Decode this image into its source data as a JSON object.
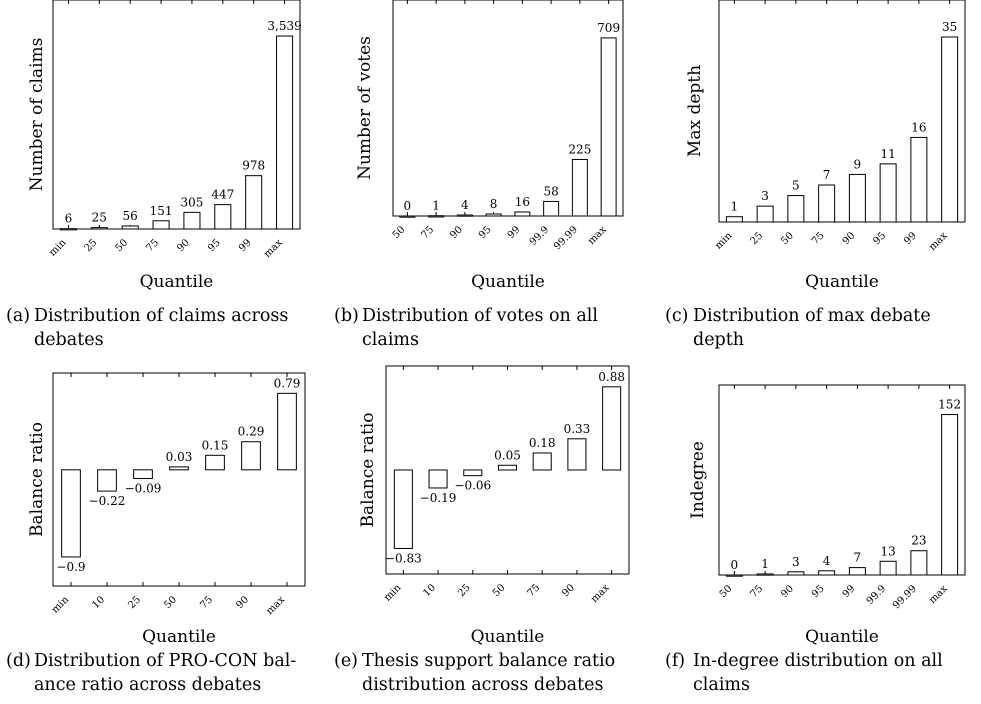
{
  "chart_data": [
    {
      "type": "bar",
      "categories": [
        "min",
        "25",
        "50",
        "75",
        "90",
        "95",
        "99",
        "max"
      ],
      "values": [
        6,
        25,
        56,
        151,
        305,
        447,
        978,
        3539
      ],
      "value_labels": [
        "6",
        "25",
        "56",
        "151",
        "305",
        "447",
        "978",
        "3,539"
      ],
      "xlabel": "Quantile",
      "ylabel": "Number of claims",
      "ylim": [
        0,
        4200
      ],
      "grid": false,
      "caption_tag": "(a)",
      "caption_lines": [
        "Distribution of claims across",
        "debates"
      ]
    },
    {
      "type": "bar",
      "categories": [
        "50",
        "75",
        "90",
        "95",
        "99",
        "99.9",
        "99.99",
        "max"
      ],
      "values": [
        0,
        1,
        4,
        8,
        16,
        58,
        225,
        709
      ],
      "value_labels": [
        "0",
        "1",
        "4",
        "8",
        "16",
        "58",
        "225",
        "709"
      ],
      "xlabel": "Quantile",
      "ylabel": "Number of votes",
      "ylim": [
        0,
        860
      ],
      "grid": false,
      "caption_tag": "(b)",
      "caption_lines": [
        "Distribution of votes on all",
        "claims"
      ]
    },
    {
      "type": "bar",
      "categories": [
        "min",
        "25",
        "50",
        "75",
        "90",
        "95",
        "99",
        "max"
      ],
      "values": [
        1,
        3,
        5,
        7,
        9,
        11,
        16,
        35
      ],
      "value_labels": [
        "1",
        "3",
        "5",
        "7",
        "9",
        "11",
        "16",
        "35"
      ],
      "xlabel": "Quantile",
      "ylabel": "Max depth",
      "ylim": [
        0,
        42
      ],
      "grid": false,
      "caption_tag": "(c)",
      "caption_lines": [
        "Distribution of max debate",
        "depth"
      ]
    },
    {
      "type": "bar",
      "categories": [
        "min",
        "10",
        "25",
        "50",
        "75",
        "90",
        "max"
      ],
      "values": [
        -0.9,
        -0.22,
        -0.09,
        0.03,
        0.15,
        0.29,
        0.79
      ],
      "value_labels": [
        "−0.9",
        "−0.22",
        "−0.09",
        "0.03",
        "0.15",
        "0.29",
        "0.79"
      ],
      "xlabel": "Quantile",
      "ylabel": "Balance ratio",
      "ylim": [
        -1.2,
        1.0
      ],
      "grid": false,
      "caption_tag": "(d)",
      "caption_lines": [
        "Distribution of PRO-CON bal-",
        "ance ratio across debates"
      ]
    },
    {
      "type": "bar",
      "categories": [
        "min",
        "10",
        "25",
        "50",
        "75",
        "90",
        "max"
      ],
      "values": [
        -0.83,
        -0.19,
        -0.06,
        0.05,
        0.18,
        0.33,
        0.88
      ],
      "value_labels": [
        "−0.83",
        "−0.19",
        "−0.06",
        "0.05",
        "0.18",
        "0.33",
        "0.88"
      ],
      "xlabel": "Quantile",
      "ylabel": "Balance ratio",
      "ylim": [
        -1.1,
        1.1
      ],
      "grid": false,
      "caption_tag": "(e)",
      "caption_lines": [
        "Thesis support balance ratio",
        "distribution across debates"
      ]
    },
    {
      "type": "bar",
      "categories": [
        "50",
        "75",
        "90",
        "95",
        "99",
        "99.9",
        "99.99",
        "max"
      ],
      "values": [
        0,
        1,
        3,
        4,
        7,
        13,
        23,
        152
      ],
      "value_labels": [
        "0",
        "1",
        "3",
        "4",
        "7",
        "13",
        "23",
        "152"
      ],
      "xlabel": "Quantile",
      "ylabel": "Indegree",
      "ylim": [
        0,
        180
      ],
      "grid": false,
      "caption_tag": "(f)",
      "caption_lines": [
        "In-degree distribution on all",
        "claims"
      ]
    }
  ]
}
